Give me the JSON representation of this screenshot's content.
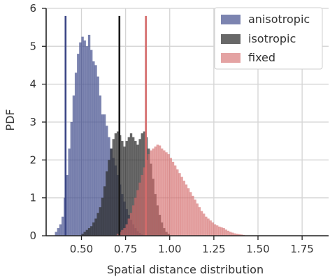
{
  "chart_data": {
    "type": "histogram",
    "xlabel": "Spatial distance distribution",
    "ylabel": "PDF",
    "xlim": [
      0.3,
      1.9
    ],
    "ylim": [
      0,
      6
    ],
    "xticks": [
      0.5,
      0.75,
      1.0,
      1.25,
      1.5,
      1.75
    ],
    "xtick_labels": [
      "0.50",
      "0.75",
      "1.00",
      "1.25",
      "1.50",
      "1.75"
    ],
    "yticks": [
      0,
      1,
      2,
      3,
      4,
      5,
      6
    ],
    "ytick_labels": [
      "0",
      "1",
      "2",
      "3",
      "4",
      "5",
      "6"
    ],
    "grid": true,
    "legend_position": "top-right",
    "bin_width": 0.0125,
    "series": [
      {
        "name": "anisotropic",
        "color": "#4a5592",
        "opacity": 0.72,
        "bin_start": 0.35,
        "values": [
          0.1,
          0.2,
          0.3,
          0.5,
          1.0,
          1.6,
          2.3,
          3.0,
          3.7,
          4.3,
          4.8,
          5.1,
          5.25,
          5.15,
          5.0,
          5.3,
          4.9,
          4.6,
          4.5,
          4.2,
          3.7,
          3.2,
          3.2,
          2.9,
          2.6,
          2.3,
          2.05,
          1.85,
          1.6,
          1.35,
          1.1,
          0.9,
          0.7,
          0.55,
          0.42,
          0.3,
          0.2,
          0.12,
          0.07,
          0.03
        ]
      },
      {
        "name": "isotropic",
        "color": "#2e2e2e",
        "opacity": 0.72,
        "bin_start": 0.5,
        "values": [
          0.05,
          0.1,
          0.15,
          0.2,
          0.25,
          0.35,
          0.45,
          0.6,
          0.75,
          1.0,
          1.3,
          1.7,
          2.0,
          2.3,
          2.55,
          2.7,
          2.75,
          2.65,
          2.5,
          2.35,
          2.5,
          2.6,
          2.7,
          2.6,
          2.5,
          2.4,
          2.55,
          2.7,
          2.75,
          2.6,
          2.3,
          1.9,
          1.5,
          1.1,
          0.8,
          0.55,
          0.35,
          0.2,
          0.1,
          0.05
        ]
      },
      {
        "name": "fixed",
        "color": "#d46a6a",
        "opacity": 0.62,
        "bin_start": 0.7,
        "values": [
          0.05,
          0.1,
          0.15,
          0.2,
          0.3,
          0.45,
          0.6,
          0.8,
          1.0,
          1.2,
          1.4,
          1.6,
          1.8,
          2.0,
          2.15,
          2.25,
          2.3,
          2.35,
          2.4,
          2.38,
          2.3,
          2.25,
          2.2,
          2.15,
          2.05,
          1.95,
          1.85,
          1.75,
          1.65,
          1.55,
          1.45,
          1.35,
          1.25,
          1.15,
          1.05,
          0.95,
          0.85,
          0.75,
          0.65,
          0.58,
          0.5,
          0.45,
          0.4,
          0.35,
          0.3,
          0.27,
          0.24,
          0.22,
          0.2,
          0.16,
          0.13,
          0.1,
          0.08,
          0.06,
          0.05,
          0.04,
          0.03,
          0.02
        ]
      }
    ],
    "vlines": [
      {
        "series": "anisotropic",
        "x": 0.41,
        "color": "#3b4685"
      },
      {
        "series": "isotropic",
        "x": 0.715,
        "color": "#1a1a1a"
      },
      {
        "series": "fixed",
        "x": 0.865,
        "color": "#d46a6a"
      }
    ]
  }
}
